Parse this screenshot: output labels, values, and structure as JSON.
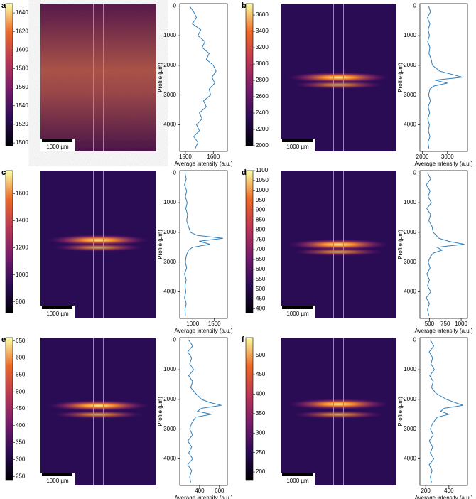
{
  "chart_data": [
    {
      "type": "line",
      "panel": "a",
      "scale_bar": "1000 µm",
      "xlabel": "Average intensity (a.u.)",
      "ylabel": "Profile (µm)",
      "colorbar": {
        "lim": [
          1497,
          1650
        ],
        "ticks": [
          1500,
          1520,
          1540,
          1560,
          1580,
          1600,
          1620,
          1640
        ]
      },
      "y": [
        0,
        200,
        400,
        600,
        800,
        1000,
        1200,
        1400,
        1600,
        1800,
        2000,
        2200,
        2400,
        2600,
        2800,
        3000,
        3200,
        3400,
        3600,
        3800,
        4000,
        4200,
        4400,
        4600,
        4800
      ],
      "values": [
        1515,
        1530,
        1540,
        1525,
        1555,
        1545,
        1570,
        1560,
        1585,
        1575,
        1600,
        1610,
        1595,
        1605,
        1585,
        1590,
        1565,
        1575,
        1550,
        1560,
        1540,
        1550,
        1530,
        1545,
        1535
      ],
      "xlim": [
        1480,
        1650
      ],
      "xticks": [
        1500,
        1600
      ],
      "ylim": [
        4900,
        -80
      ],
      "yticks": [
        0,
        1000,
        2000,
        3000,
        4000
      ],
      "color": "#2e7ebc"
    },
    {
      "type": "line",
      "panel": "b",
      "scale_bar": "1000 µm",
      "xlabel": "Average intensity (a.u.)",
      "ylabel": "Profile (µm)",
      "colorbar": {
        "lim": [
          2000,
          3740
        ],
        "ticks": [
          2000,
          2200,
          2400,
          2600,
          2800,
          3000,
          3200,
          3400,
          3600
        ]
      },
      "y": [
        0,
        200,
        400,
        600,
        800,
        1000,
        1200,
        1400,
        1600,
        1800,
        2000,
        2200,
        2400,
        2500,
        2600,
        2700,
        2800,
        3000,
        3200,
        3400,
        3600,
        3800,
        4000,
        4200,
        4400,
        4600,
        4800
      ],
      "values": [
        2250,
        2320,
        2200,
        2300,
        2230,
        2280,
        2210,
        2300,
        2260,
        2350,
        2400,
        2700,
        3600,
        2500,
        3000,
        2450,
        2300,
        2250,
        2320,
        2230,
        2290,
        2210,
        2280,
        2240,
        2300,
        2220,
        2260
      ],
      "xlim": [
        1900,
        3800
      ],
      "xticks": [
        2000,
        3000
      ],
      "ylim": [
        4900,
        -80
      ],
      "yticks": [
        0,
        1000,
        2000,
        3000,
        4000
      ],
      "color": "#2e7ebc"
    },
    {
      "type": "line",
      "panel": "c",
      "scale_bar": "1000 µm",
      "xlabel": "Average intensity (a.u.)",
      "ylabel": "Profile (µm)",
      "colorbar": {
        "lim": [
          720,
          1770
        ],
        "ticks": [
          800,
          1000,
          1200,
          1400,
          1600
        ]
      },
      "y": [
        0,
        200,
        400,
        600,
        800,
        1000,
        1200,
        1400,
        1600,
        1800,
        2000,
        2100,
        2200,
        2300,
        2400,
        2500,
        2600,
        2800,
        3000,
        3200,
        3400,
        3600,
        3800,
        4000,
        4200,
        4400,
        4600,
        4800
      ],
      "values": [
        820,
        850,
        810,
        860,
        830,
        870,
        840,
        880,
        860,
        900,
        950,
        1100,
        1700,
        1150,
        1400,
        1000,
        900,
        850,
        830,
        860,
        810,
        850,
        820,
        840,
        810,
        850,
        820,
        830
      ],
      "xlim": [
        700,
        1800
      ],
      "xticks": [
        1000,
        1500
      ],
      "ylim": [
        4900,
        -80
      ],
      "yticks": [
        0,
        1000,
        2000,
        3000,
        4000
      ],
      "color": "#2e7ebc"
    },
    {
      "type": "line",
      "panel": "d",
      "scale_bar": "1000 µm",
      "xlabel": "Average intensity (a.u.)",
      "ylabel": "Profile (µm)",
      "colorbar": {
        "lim": [
          380,
          1100
        ],
        "ticks": [
          400,
          450,
          500,
          550,
          600,
          650,
          700,
          750,
          800,
          850,
          900,
          950,
          1000,
          1050,
          1100
        ]
      },
      "y": [
        0,
        200,
        400,
        600,
        800,
        1000,
        1200,
        1400,
        1600,
        1800,
        2000,
        2200,
        2300,
        2400,
        2500,
        2600,
        2700,
        2800,
        3000,
        3200,
        3400,
        3600,
        3800,
        4000,
        4200,
        4400,
        4600,
        4800
      ],
      "values": [
        470,
        520,
        450,
        510,
        480,
        530,
        460,
        520,
        490,
        540,
        560,
        650,
        800,
        1050,
        620,
        700,
        560,
        520,
        480,
        510,
        460,
        500,
        470,
        520,
        450,
        500,
        470,
        490
      ],
      "xlim": [
        350,
        1100
      ],
      "xticks": [
        500,
        750,
        1000
      ],
      "ylim": [
        4900,
        -80
      ],
      "yticks": [
        0,
        1000,
        2000,
        3000,
        4000
      ],
      "color": "#2e7ebc"
    },
    {
      "type": "line",
      "panel": "e",
      "scale_bar": "1000 µm",
      "xlabel": "Average intensity (a.u.)",
      "ylabel": "Profile (µm)",
      "colorbar": {
        "lim": [
          240,
          660
        ],
        "ticks": [
          250,
          300,
          350,
          400,
          450,
          500,
          550,
          600,
          650
        ]
      },
      "y": [
        0,
        200,
        400,
        600,
        800,
        1000,
        1200,
        1400,
        1600,
        1800,
        2000,
        2100,
        2200,
        2300,
        2400,
        2500,
        2600,
        2800,
        3000,
        3200,
        3400,
        3600,
        3800,
        4000,
        4200,
        4400,
        4600,
        4800
      ],
      "values": [
        290,
        330,
        280,
        320,
        300,
        340,
        290,
        330,
        310,
        360,
        420,
        500,
        620,
        420,
        380,
        520,
        360,
        320,
        300,
        330,
        280,
        320,
        290,
        330,
        280,
        320,
        300,
        310
      ],
      "xlim": [
        200,
        680
      ],
      "xticks": [
        400,
        600
      ],
      "ylim": [
        4900,
        -80
      ],
      "yticks": [
        0,
        1000,
        2000,
        3000,
        4000
      ],
      "color": "#2e7ebc"
    },
    {
      "type": "line",
      "panel": "f",
      "scale_bar": "1000 µm",
      "xlabel": "Average intensity (a.u.)",
      "ylabel": "Profile (µm)",
      "colorbar": {
        "lim": [
          180,
          545
        ],
        "ticks": [
          200,
          250,
          300,
          350,
          400,
          450,
          500
        ]
      },
      "y": [
        0,
        200,
        400,
        600,
        800,
        1000,
        1200,
        1400,
        1600,
        1800,
        2000,
        2100,
        2200,
        2300,
        2400,
        2500,
        2600,
        2800,
        3000,
        3200,
        3400,
        3600,
        3800,
        4000,
        4200,
        4400,
        4600,
        4800
      ],
      "values": [
        240,
        270,
        230,
        260,
        245,
        275,
        235,
        265,
        250,
        290,
        380,
        450,
        520,
        360,
        330,
        400,
        300,
        260,
        240,
        265,
        230,
        260,
        240,
        270,
        230,
        255,
        240,
        250
      ],
      "xlim": [
        150,
        560
      ],
      "xticks": [
        200,
        400
      ],
      "ylim": [
        4900,
        -80
      ],
      "yticks": [
        0,
        1000,
        2000,
        3000,
        4000
      ],
      "color": "#2e7ebc"
    }
  ]
}
